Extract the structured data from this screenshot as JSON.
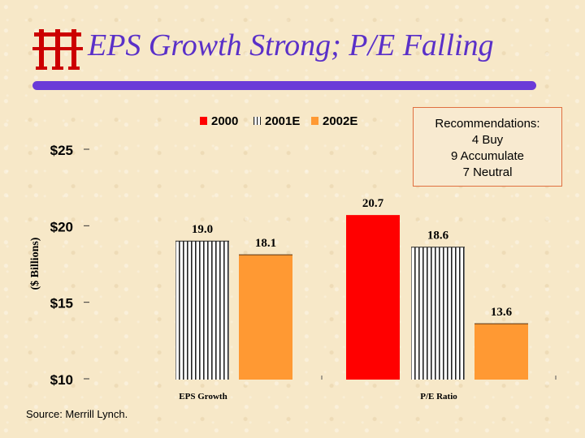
{
  "title": "EPS Growth Strong; P/E Falling",
  "recommendations": {
    "heading": "Recommendations:",
    "lines": [
      "4 Buy",
      "9 Accumulate",
      "7 Neutral"
    ]
  },
  "source": "Source: Merrill Lynch.",
  "chart_data": {
    "type": "bar",
    "ylabel": "($ Billions)",
    "yticks": [
      "$25",
      "$20",
      "$15",
      "$10"
    ],
    "ylim": [
      10,
      25
    ],
    "categories": [
      "EPS Growth",
      "P/E Ratio"
    ],
    "series": [
      {
        "name": "2000",
        "values": [
          null,
          20.7
        ],
        "labels": [
          "",
          "20.7"
        ],
        "color": "#ff0000",
        "pattern": "solid"
      },
      {
        "name": "2001E",
        "values": [
          19.0,
          18.6
        ],
        "labels": [
          "19.0",
          "18.6"
        ],
        "color": "#ffffff",
        "pattern": "stripes"
      },
      {
        "name": "2002E",
        "values": [
          18.1,
          13.6
        ],
        "labels": [
          "18.1",
          "13.6"
        ],
        "color": "#ff9933",
        "pattern": "solid"
      }
    ],
    "legend_position": "top-center",
    "grid": false
  }
}
